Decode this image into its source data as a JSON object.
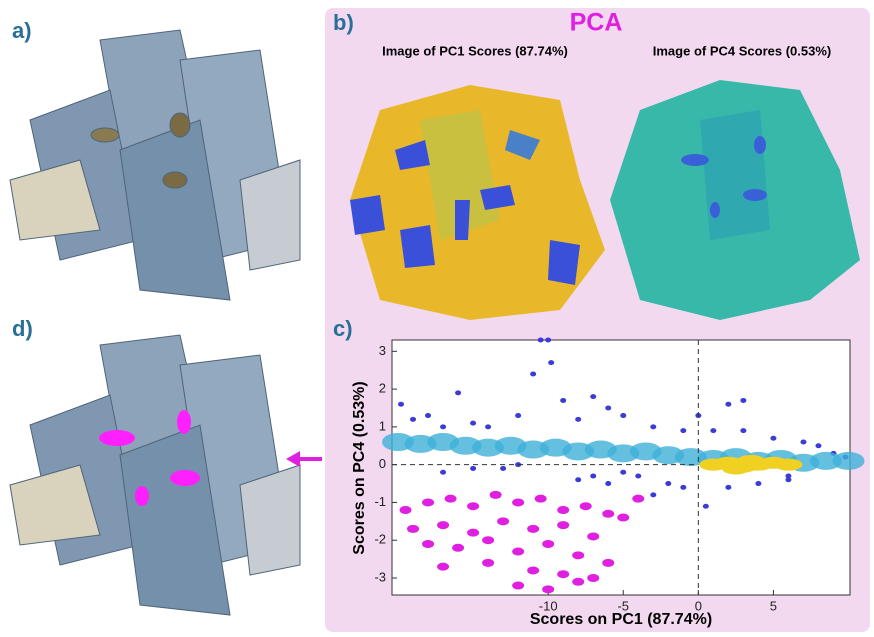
{
  "panels": {
    "a": "a)",
    "b": "b)",
    "c": "c)",
    "d": "d)"
  },
  "pca_title": "PCA",
  "images": [
    "Image of PC1 Scores (87.74%)",
    "Image of PC4 Scores (0.53%)"
  ],
  "chart_data": {
    "type": "scatter",
    "xlabel": "Scores on PC1 (87.74%)",
    "ylabel": "Scores on PC4 (0.53%)",
    "xlim": [
      -20.4,
      10.1
    ],
    "ylim": [
      -3.45,
      3.3
    ],
    "xticks": [
      -10,
      -5,
      0,
      5
    ],
    "yticks": [
      -3,
      -2,
      -1,
      0,
      1,
      2,
      3
    ],
    "xline": 0,
    "yline": 0,
    "series": [
      {
        "color": "#3b3bd6",
        "x": [
          -19.8,
          -19,
          -18,
          -17,
          -16,
          -15,
          -14,
          -13,
          -12,
          -11,
          -10,
          -9,
          -8,
          -7,
          -6,
          -5,
          -4,
          -3,
          -2,
          -1,
          0,
          1,
          2,
          3,
          4,
          5,
          6,
          7,
          8,
          9,
          9.8,
          -10.5,
          -9.8,
          -8,
          -6,
          -3,
          0.5,
          2,
          -15,
          -12,
          -5,
          -1,
          3,
          6,
          -17,
          -7
        ],
        "y": [
          1.6,
          1.2,
          1.3,
          -0.2,
          1.9,
          1.1,
          1.0,
          -0.1,
          1.3,
          2.4,
          3.3,
          1.7,
          1.2,
          -0.3,
          1.5,
          1.3,
          -0.3,
          1.0,
          -0.5,
          0.9,
          1.3,
          0.9,
          -0.6,
          0.9,
          -0.5,
          0.7,
          -0.4,
          0.6,
          0.5,
          0.3,
          0.2,
          3.3,
          2.7,
          -0.4,
          -0.5,
          -0.8,
          -1.1,
          1.6,
          -0.1,
          0.0,
          -0.2,
          -0.6,
          1.7,
          -0.3,
          1.0,
          1.8
        ]
      },
      {
        "color": "#3fb0d8",
        "x": [
          -20,
          -18.5,
          -17,
          -15.5,
          -14,
          -12.5,
          -11,
          -9.5,
          -8,
          -6.5,
          -5,
          -3.5,
          -2,
          -0.5,
          1,
          2.5,
          4,
          5.5,
          7,
          8.5,
          10
        ],
        "y": [
          0.6,
          0.55,
          0.6,
          0.5,
          0.45,
          0.5,
          0.4,
          0.45,
          0.35,
          0.4,
          0.3,
          0.35,
          0.25,
          0.2,
          0.15,
          0.2,
          0.1,
          0.15,
          0.05,
          0.1,
          0.1
        ]
      },
      {
        "color": "#f0d020",
        "x": [
          1,
          2,
          3,
          4,
          5,
          6,
          3.5,
          2.5
        ],
        "y": [
          0,
          0.05,
          -0.05,
          0,
          0.05,
          0,
          0.1,
          -0.1
        ]
      },
      {
        "color": "#e020e0",
        "x": [
          -19.5,
          -18,
          -16.5,
          -15,
          -13.5,
          -12,
          -10.5,
          -9,
          -7.5,
          -6,
          -19,
          -17,
          -15,
          -13,
          -11,
          -9,
          -7,
          -5,
          -4,
          -18,
          -16,
          -14,
          -12,
          -10,
          -8,
          -6,
          -17,
          -14,
          -11,
          -9,
          -7,
          -12,
          -10,
          -8
        ],
        "y": [
          -1.2,
          -1.0,
          -0.9,
          -1.1,
          -0.8,
          -1.0,
          -0.9,
          -1.2,
          -1.1,
          -1.3,
          -1.7,
          -1.6,
          -1.8,
          -1.5,
          -1.7,
          -1.6,
          -1.9,
          -1.4,
          -0.9,
          -2.1,
          -2.2,
          -2.0,
          -2.3,
          -2.1,
          -2.4,
          -2.6,
          -2.7,
          -2.6,
          -2.8,
          -2.9,
          -3.0,
          -3.2,
          -3.3,
          -3.1
        ]
      }
    ]
  }
}
